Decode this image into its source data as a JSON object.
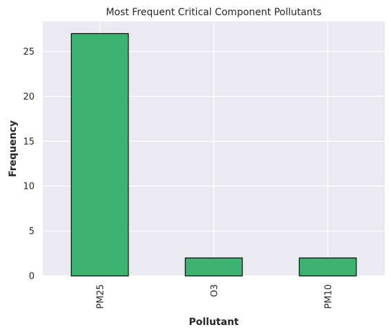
{
  "chart_data": {
    "type": "bar",
    "title": "Most Frequent Critical Component Pollutants",
    "xlabel": "Pollutant",
    "ylabel": "Frequency",
    "categories": [
      "PM25",
      "O3",
      "PM10"
    ],
    "values": [
      27,
      2,
      2
    ],
    "ylim": [
      0,
      28.35
    ],
    "yticks": [
      0,
      5,
      10,
      15,
      20,
      25
    ],
    "grid": true,
    "bar_color": "#3cb371",
    "bar_edge_color": "#000000",
    "background_color": "#eaeaf2",
    "grid_color": "#ffffff"
  }
}
